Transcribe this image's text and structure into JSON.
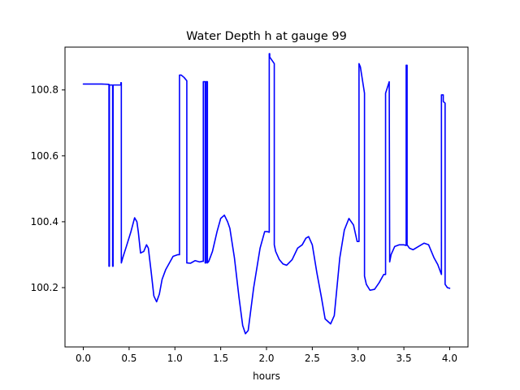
{
  "chart_data": {
    "type": "line",
    "title": "Water Depth h at gauge 99",
    "xlabel": "hours",
    "ylabel": "",
    "xlim": [
      -0.2,
      4.2
    ],
    "ylim": [
      100.02,
      100.93
    ],
    "grid": false,
    "xticks": [
      0.0,
      0.5,
      1.0,
      1.5,
      2.0,
      2.5,
      3.0,
      3.5,
      4.0
    ],
    "xtick_labels": [
      "0.0",
      "0.5",
      "1.0",
      "1.5",
      "2.0",
      "2.5",
      "3.0",
      "3.5",
      "4.0"
    ],
    "yticks": [
      100.2,
      100.4,
      100.6,
      100.8
    ],
    "ytick_labels": [
      "100.2",
      "100.4",
      "100.6",
      "100.8"
    ],
    "series": [
      {
        "color": "#0000ff",
        "x": [
          0.0,
          0.2,
          0.28,
          0.28,
          0.285,
          0.285,
          0.32,
          0.32,
          0.325,
          0.325,
          0.41,
          0.41,
          0.415,
          0.415,
          0.43,
          0.47,
          0.52,
          0.56,
          0.585,
          0.6,
          0.625,
          0.66,
          0.69,
          0.71,
          0.74,
          0.77,
          0.8,
          0.83,
          0.86,
          0.9,
          0.94,
          0.98,
          1.03,
          1.05,
          1.05,
          1.07,
          1.1,
          1.13,
          1.13,
          1.17,
          1.22,
          1.27,
          1.3,
          1.31,
          1.31,
          1.33,
          1.33,
          1.34,
          1.34,
          1.355,
          1.355,
          1.37,
          1.41,
          1.46,
          1.5,
          1.54,
          1.575,
          1.6,
          1.65,
          1.7,
          1.74,
          1.77,
          1.8,
          1.86,
          1.93,
          1.98,
          2.01,
          2.03,
          2.03,
          2.035,
          2.035,
          2.085,
          2.085,
          2.1,
          2.14,
          2.18,
          2.22,
          2.28,
          2.34,
          2.39,
          2.43,
          2.46,
          2.5,
          2.55,
          2.6,
          2.64,
          2.7,
          2.74,
          2.8,
          2.85,
          2.9,
          2.95,
          2.99,
          3.01,
          3.01,
          3.025,
          3.07,
          3.07,
          3.09,
          3.13,
          3.18,
          3.23,
          3.28,
          3.3,
          3.3,
          3.34,
          3.34,
          3.345,
          3.36,
          3.4,
          3.45,
          3.5,
          3.525,
          3.525,
          3.535,
          3.535,
          3.56,
          3.6,
          3.66,
          3.72,
          3.77,
          3.83,
          3.87,
          3.91,
          3.91,
          3.93,
          3.93,
          3.95,
          3.95,
          3.975,
          4.0
        ],
        "y": [
          100.818,
          100.818,
          100.817,
          100.265,
          100.265,
          100.815,
          100.815,
          100.265,
          100.265,
          100.815,
          100.815,
          100.822,
          100.822,
          100.275,
          100.29,
          100.325,
          100.37,
          100.412,
          100.4,
          100.37,
          100.305,
          100.31,
          100.33,
          100.32,
          100.25,
          100.175,
          100.157,
          100.18,
          100.225,
          100.255,
          100.275,
          100.295,
          100.3,
          100.3,
          100.845,
          100.845,
          100.838,
          100.828,
          100.275,
          100.274,
          100.282,
          100.278,
          100.28,
          100.28,
          100.825,
          100.825,
          100.275,
          100.275,
          100.825,
          100.825,
          100.275,
          100.28,
          100.31,
          100.37,
          100.41,
          100.42,
          100.4,
          100.38,
          100.29,
          100.17,
          100.085,
          100.06,
          100.07,
          100.2,
          100.32,
          100.37,
          100.37,
          100.368,
          100.91,
          100.91,
          100.9,
          100.88,
          100.33,
          100.31,
          100.285,
          100.272,
          100.268,
          100.285,
          100.32,
          100.33,
          100.35,
          100.355,
          100.33,
          100.245,
          100.17,
          100.105,
          100.09,
          100.115,
          100.29,
          100.375,
          100.41,
          100.39,
          100.34,
          100.34,
          100.88,
          100.87,
          100.79,
          100.235,
          100.21,
          100.192,
          100.195,
          100.215,
          100.24,
          100.24,
          100.79,
          100.825,
          100.825,
          100.278,
          100.3,
          100.325,
          100.33,
          100.33,
          100.328,
          100.875,
          100.875,
          100.33,
          100.32,
          100.315,
          100.325,
          100.335,
          100.33,
          100.29,
          100.27,
          100.24,
          100.785,
          100.785,
          100.765,
          100.76,
          100.21,
          100.2,
          100.198
        ]
      }
    ]
  }
}
